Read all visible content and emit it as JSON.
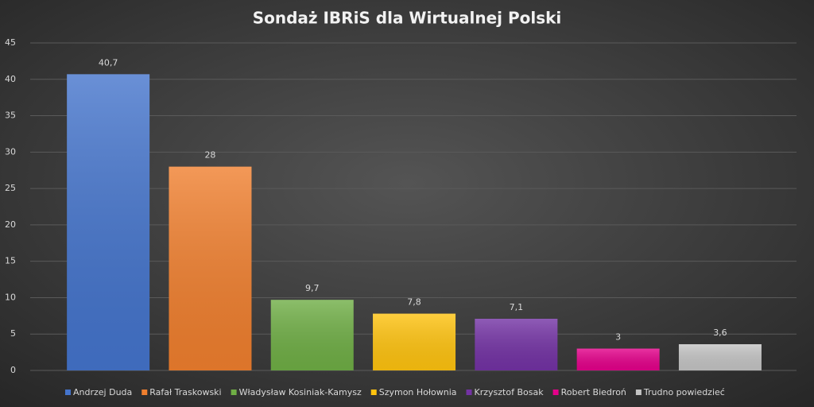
{
  "chart_data": {
    "type": "bar",
    "title": "Sondaż IBRiS dla Wirtualnej Polski",
    "categories": [
      "Andrzej Duda",
      "Rafał Traskowski",
      "Władysław Kosiniak-Kamysz",
      "Szymon Hołownia",
      "Krzysztof Bosak",
      "Robert Biedroń",
      "Trudno powiedzieć"
    ],
    "values": [
      40.7,
      28,
      9.7,
      7.8,
      7.1,
      3,
      3.6
    ],
    "value_labels": [
      "40,7",
      "28",
      "9,7",
      "7,8",
      "7,1",
      "3",
      "3,6"
    ],
    "colors": [
      "#4474cc",
      "#f07f2e",
      "#6fae45",
      "#ffc30f",
      "#7332a4",
      "#e4008a",
      "#c4c4c4"
    ],
    "ylim": [
      0,
      45
    ],
    "yticks": [
      0,
      5,
      10,
      15,
      20,
      25,
      30,
      35,
      40,
      45
    ],
    "grid": true,
    "legend": "bottom"
  }
}
